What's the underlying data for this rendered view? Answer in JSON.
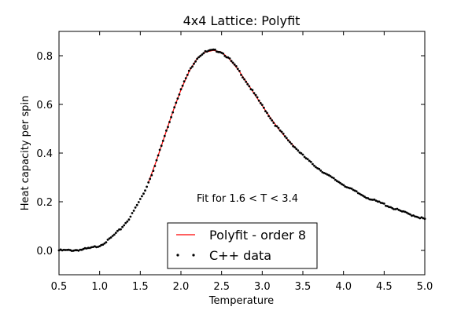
{
  "chart_data": {
    "type": "scatter",
    "title": "4x4 Lattice: Polyfit",
    "xlabel": "Temperature",
    "ylabel": "Heat capacity per spin",
    "xlim": [
      0.5,
      5.0
    ],
    "ylim": [
      -0.1,
      0.9
    ],
    "xticks": [
      0.5,
      1.0,
      1.5,
      2.0,
      2.5,
      3.0,
      3.5,
      4.0,
      4.5,
      5.0
    ],
    "xtick_labels": [
      "0.5",
      "1.0",
      "1.5",
      "2.0",
      "2.5",
      "3.0",
      "3.5",
      "4.0",
      "4.5",
      "5.0"
    ],
    "yticks": [
      0.0,
      0.2,
      0.4,
      0.6,
      0.8
    ],
    "ytick_labels": [
      "0.0",
      "0.2",
      "0.4",
      "0.6",
      "0.8"
    ],
    "grid": false,
    "annotation": {
      "text": "Fit for 1.6 < T < 3.4",
      "x": 2.2,
      "y": 0.2
    },
    "legend": {
      "position": "lower-center",
      "entries": [
        {
          "label": "Polyfit - order 8",
          "style": "line",
          "color": "#ff0000"
        },
        {
          "label": "C++ data",
          "style": "dots",
          "color": "#000000"
        }
      ]
    },
    "series": [
      {
        "name": "C++ data",
        "style": "dots",
        "color": "#000000",
        "x": [
          0.5,
          0.6,
          0.7,
          0.8,
          0.9,
          1.0,
          1.05,
          1.1,
          1.15,
          1.2,
          1.25,
          1.3,
          1.35,
          1.4,
          1.45,
          1.5,
          1.55,
          1.6,
          1.65,
          1.7,
          1.75,
          1.8,
          1.85,
          1.9,
          1.95,
          2.0,
          2.05,
          2.1,
          2.15,
          2.2,
          2.25,
          2.3,
          2.35,
          2.4,
          2.45,
          2.5,
          2.55,
          2.6,
          2.65,
          2.7,
          2.75,
          2.8,
          2.85,
          2.9,
          2.95,
          3.0,
          3.05,
          3.1,
          3.15,
          3.2,
          3.25,
          3.3,
          3.4,
          3.5,
          3.6,
          3.7,
          3.8,
          3.9,
          4.0,
          4.1,
          4.2,
          4.3,
          4.4,
          4.5,
          4.6,
          4.7,
          4.8,
          4.9,
          5.0
        ],
        "y": [
          0.0,
          0.0,
          0.001,
          0.004,
          0.01,
          0.02,
          0.03,
          0.04,
          0.055,
          0.07,
          0.085,
          0.105,
          0.125,
          0.15,
          0.18,
          0.21,
          0.24,
          0.28,
          0.32,
          0.37,
          0.42,
          0.47,
          0.52,
          0.57,
          0.62,
          0.66,
          0.7,
          0.735,
          0.765,
          0.79,
          0.805,
          0.815,
          0.82,
          0.822,
          0.82,
          0.815,
          0.8,
          0.785,
          0.765,
          0.745,
          0.72,
          0.695,
          0.67,
          0.645,
          0.62,
          0.595,
          0.57,
          0.545,
          0.52,
          0.5,
          0.48,
          0.46,
          0.425,
          0.39,
          0.36,
          0.335,
          0.31,
          0.29,
          0.27,
          0.25,
          0.232,
          0.216,
          0.202,
          0.19,
          0.175,
          0.162,
          0.15,
          0.14,
          0.128
        ]
      },
      {
        "name": "Polyfit - order 8",
        "style": "line",
        "color": "#ff0000",
        "x": [
          1.6,
          1.7,
          1.8,
          1.9,
          2.0,
          2.1,
          2.2,
          2.3,
          2.4,
          2.5,
          2.6,
          2.7,
          2.8,
          2.9,
          3.0,
          3.1,
          3.2,
          3.3,
          3.4
        ],
        "y": [
          0.28,
          0.37,
          0.47,
          0.57,
          0.66,
          0.735,
          0.79,
          0.815,
          0.822,
          0.815,
          0.785,
          0.745,
          0.695,
          0.645,
          0.595,
          0.545,
          0.5,
          0.46,
          0.425
        ]
      }
    ]
  }
}
